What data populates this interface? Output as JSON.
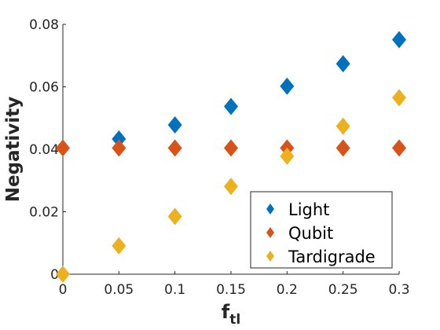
{
  "chart_data": {
    "type": "scatter",
    "xlabel_main": "f",
    "xlabel_sub": "tl",
    "ylabel": "Negativity",
    "xlim": [
      0,
      0.3
    ],
    "ylim": [
      0,
      0.08
    ],
    "xticks": [
      0,
      0.05,
      0.1,
      0.15,
      0.2,
      0.25,
      0.3
    ],
    "xtick_labels": [
      "0",
      "0.05",
      "0.1",
      "0.15",
      "0.2",
      "0.25",
      "0.3"
    ],
    "yticks": [
      0,
      0.02,
      0.04,
      0.06,
      0.08
    ],
    "ytick_labels": [
      "0",
      "0.02",
      "0.04",
      "0.06",
      "0.08"
    ],
    "grid": false,
    "legend_position": "bottom-right",
    "marker": "diamond",
    "series": [
      {
        "name": "Light",
        "color": "#0072BD",
        "x": [
          0.05,
          0.1,
          0.15,
          0.2,
          0.25,
          0.3
        ],
        "y": [
          0.0433,
          0.0478,
          0.0537,
          0.0602,
          0.0674,
          0.0751
        ]
      },
      {
        "name": "Qubit",
        "color": "#D95319",
        "x": [
          0,
          0.05,
          0.1,
          0.15,
          0.2,
          0.25,
          0.3
        ],
        "y": [
          0.0404,
          0.0404,
          0.0404,
          0.0404,
          0.0404,
          0.0404,
          0.0404
        ]
      },
      {
        "name": "Tardigrade",
        "color": "#EDB120",
        "x": [
          0,
          0.05,
          0.1,
          0.15,
          0.2,
          0.25,
          0.3
        ],
        "y": [
          0.0,
          0.0091,
          0.0185,
          0.0281,
          0.0378,
          0.0474,
          0.0565
        ]
      }
    ]
  }
}
